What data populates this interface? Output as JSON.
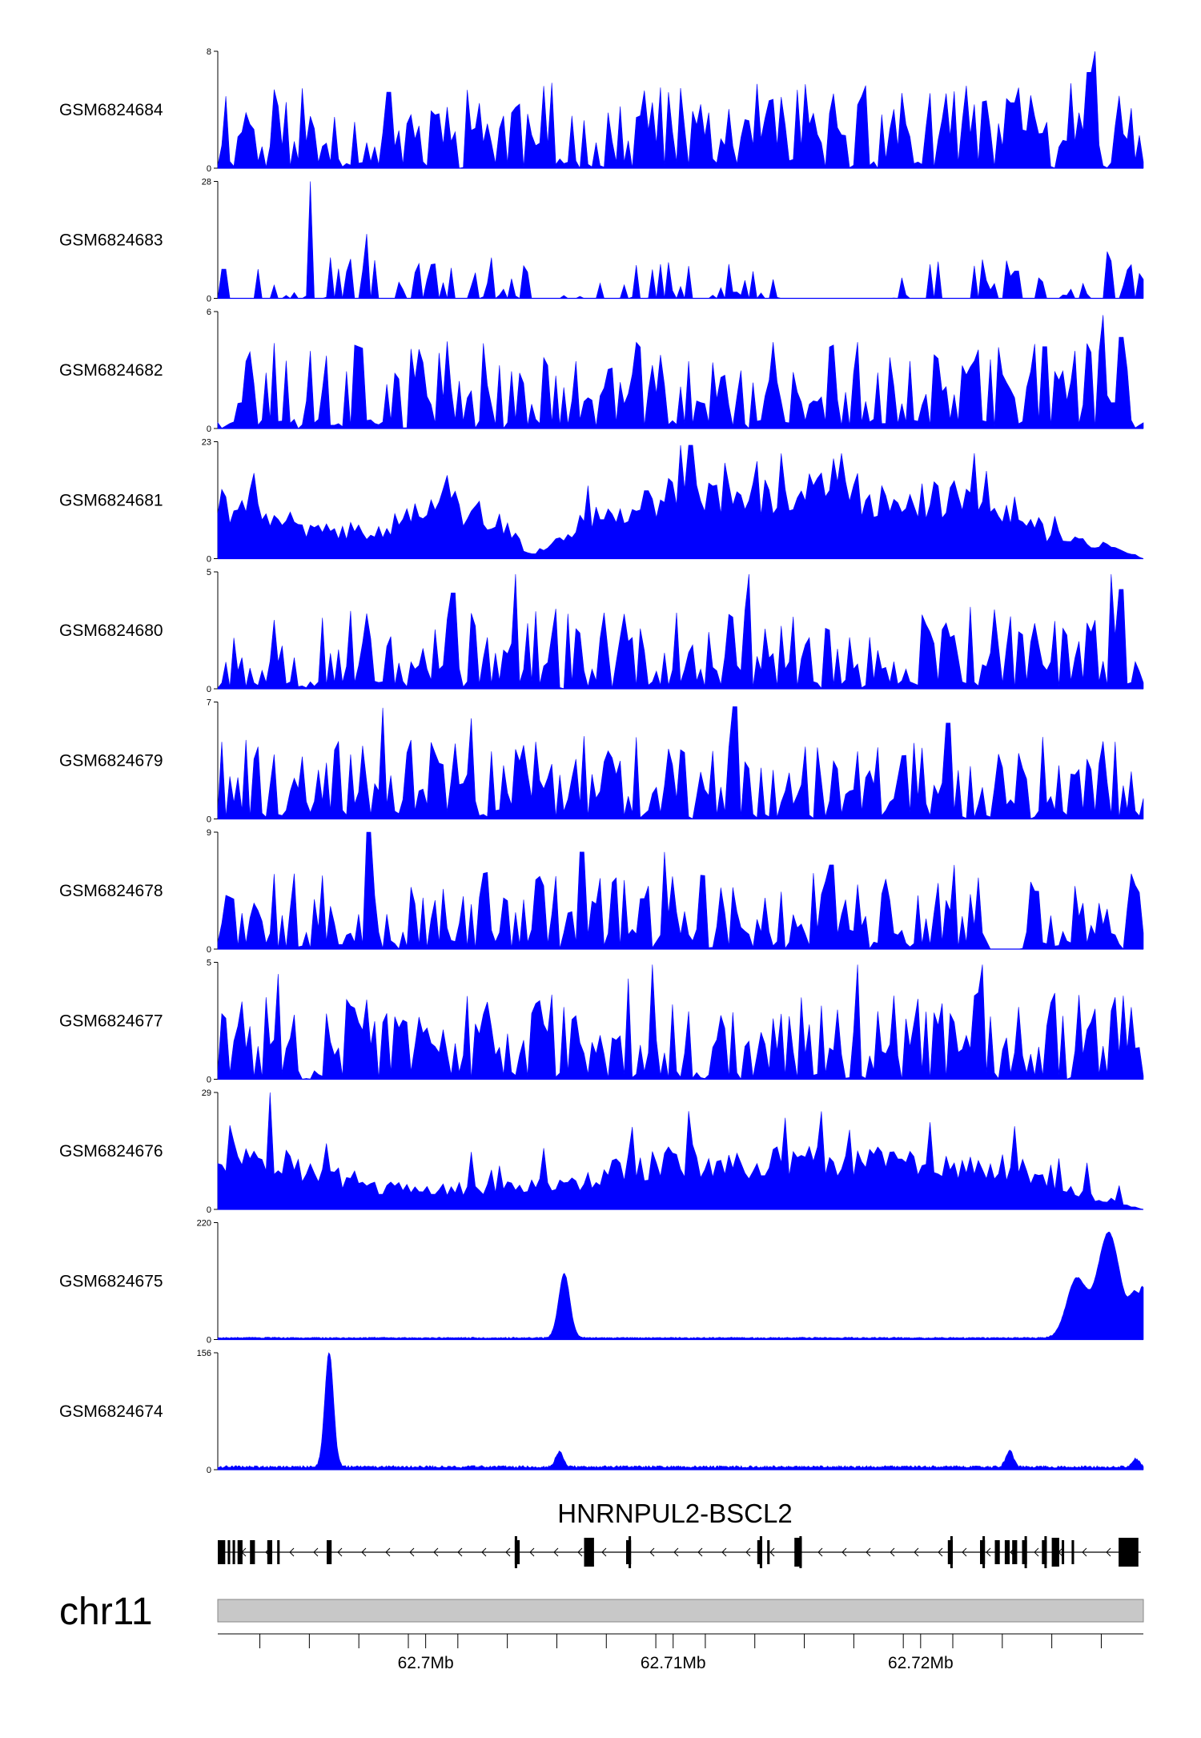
{
  "colors": {
    "signal": "#0000FF",
    "axis": "#000000",
    "ideogram_fill": "#C8C8C8",
    "ideogram_stroke": "#888888",
    "gene": "#000000"
  },
  "chart_data": {
    "type": "area",
    "region": {
      "chromosome": "chr11",
      "start_mb": 62.6916,
      "end_mb": 62.729
    },
    "series": [
      {
        "name": "GSM6824684",
        "ymax": 8,
        "ymin": 0,
        "profile": "dense_peaks",
        "seed": 11,
        "base": 0.18,
        "spread": 0.55,
        "peaks": [
          [
            62.6985,
            0.65
          ],
          [
            62.7051,
            0.73
          ],
          [
            62.715,
            0.67
          ],
          [
            62.7271,
            1.0
          ],
          [
            62.7268,
            0.82
          ],
          [
            62.7237,
            0.56
          ]
        ]
      },
      {
        "name": "GSM6824683",
        "ymax": 28,
        "ymin": 0,
        "profile": "sparse_peaks",
        "seed": 23,
        "base": 0.0,
        "spread": 0.35,
        "peaks": [
          [
            62.6953,
            1.0
          ],
          [
            62.6976,
            0.55
          ],
          [
            62.716,
            0.55
          ],
          [
            62.717,
            0.58
          ],
          [
            62.7275,
            0.4
          ]
        ],
        "gaps": [
          [
            62.7145,
            62.7186
          ]
        ]
      },
      {
        "name": "GSM6824682",
        "ymax": 6,
        "ymin": 0,
        "profile": "dense_peaks",
        "seed": 37,
        "base": 0.2,
        "spread": 0.55,
        "peaks": [
          [
            62.6994,
            0.68
          ],
          [
            62.725,
            0.7
          ],
          [
            62.7274,
            0.97
          ],
          [
            62.7281,
            0.78
          ]
        ]
      },
      {
        "name": "GSM6824681",
        "ymax": 23,
        "ymin": 0,
        "profile": "broad",
        "seed": 41,
        "base": 0.35,
        "spread": 0.35,
        "envelope": [
          [
            62.6916,
            0.55
          ],
          [
            62.6935,
            0.5
          ],
          [
            62.6955,
            0.25
          ],
          [
            62.698,
            0.3
          ],
          [
            62.701,
            0.55
          ],
          [
            62.703,
            0.35
          ],
          [
            62.7042,
            0.05
          ],
          [
            62.7048,
            0.1
          ],
          [
            62.7058,
            0.3
          ],
          [
            62.708,
            0.45
          ],
          [
            62.71,
            0.6
          ],
          [
            62.712,
            0.55
          ],
          [
            62.714,
            0.6
          ],
          [
            62.716,
            0.7
          ],
          [
            62.719,
            0.6
          ],
          [
            62.722,
            0.62
          ],
          [
            62.724,
            0.5
          ],
          [
            62.725,
            0.25
          ],
          [
            62.727,
            0.15
          ],
          [
            62.7285,
            0.05
          ],
          [
            62.729,
            0.0
          ]
        ],
        "peaks": [
          [
            62.7103,
            0.97
          ],
          [
            62.7107,
            0.97
          ],
          [
            62.7144,
            0.9
          ],
          [
            62.7168,
            0.9
          ],
          [
            62.7226,
            0.75
          ]
        ]
      },
      {
        "name": "GSM6824680",
        "ymax": 5,
        "ymin": 0,
        "profile": "dense_peaks",
        "seed": 53,
        "base": 0.15,
        "spread": 0.55,
        "peaks": [
          [
            62.7036,
            0.98
          ],
          [
            62.713,
            0.98
          ],
          [
            62.7277,
            0.98
          ],
          [
            62.7281,
            0.85
          ],
          [
            62.7011,
            0.82
          ]
        ]
      },
      {
        "name": "GSM6824679",
        "ymax": 7,
        "ymin": 0,
        "profile": "dense_peaks",
        "seed": 61,
        "base": 0.12,
        "spread": 0.6,
        "peaks": [
          [
            62.6983,
            0.95
          ],
          [
            62.7018,
            0.86
          ],
          [
            62.7125,
            0.96
          ],
          [
            62.7211,
            0.82
          ]
        ]
      },
      {
        "name": "GSM6824678",
        "ymax": 9,
        "ymin": 0,
        "profile": "dense_peaks",
        "seed": 71,
        "base": 0.12,
        "spread": 0.55,
        "peaks": [
          [
            62.6977,
            1.0
          ],
          [
            62.7063,
            0.83
          ],
          [
            62.7097,
            0.83
          ],
          [
            62.7164,
            0.72
          ],
          [
            62.7214,
            0.72
          ]
        ],
        "gaps": [
          [
            62.7227,
            62.7241
          ]
        ]
      },
      {
        "name": "GSM6824677",
        "ymax": 5,
        "ymin": 0,
        "profile": "dense_peaks",
        "seed": 83,
        "base": 0.2,
        "spread": 0.55,
        "peaks": [
          [
            62.694,
            0.9
          ],
          [
            62.7091,
            0.98
          ],
          [
            62.7175,
            0.98
          ],
          [
            62.7225,
            0.98
          ],
          [
            62.7082,
            0.86
          ]
        ]
      },
      {
        "name": "GSM6824676",
        "ymax": 29,
        "ymin": 0,
        "profile": "broad",
        "seed": 97,
        "base": 0.3,
        "spread": 0.35,
        "envelope": [
          [
            62.6916,
            0.45
          ],
          [
            62.6925,
            0.6
          ],
          [
            62.694,
            0.5
          ],
          [
            62.696,
            0.3
          ],
          [
            62.698,
            0.2
          ],
          [
            62.701,
            0.2
          ],
          [
            62.704,
            0.22
          ],
          [
            62.706,
            0.25
          ],
          [
            62.708,
            0.4
          ],
          [
            62.71,
            0.5
          ],
          [
            62.713,
            0.45
          ],
          [
            62.716,
            0.5
          ],
          [
            62.72,
            0.45
          ],
          [
            62.724,
            0.4
          ],
          [
            62.7255,
            0.2
          ],
          [
            62.7275,
            0.1
          ],
          [
            62.7285,
            0.03
          ],
          [
            62.729,
            0.0
          ]
        ],
        "peaks": [
          [
            62.6937,
            1.0
          ],
          [
            62.6921,
            0.72
          ],
          [
            62.7171,
            0.68
          ],
          [
            62.7204,
            0.52
          ]
        ]
      },
      {
        "name": "GSM6824675",
        "ymax": 220,
        "ymin": 0,
        "profile": "sharp",
        "seed": 103,
        "base": 0.01,
        "spread": 0.01,
        "peaks": [
          [
            62.7056,
            0.55,
            0.00045
          ],
          [
            62.7276,
            0.9,
            0.0009
          ],
          [
            62.7263,
            0.5,
            0.0008
          ],
          [
            62.7287,
            0.35,
            0.0005
          ],
          [
            62.729,
            0.25,
            0.0002
          ]
        ]
      },
      {
        "name": "GSM6824674",
        "ymax": 156,
        "ymin": 0,
        "profile": "sharp",
        "seed": 109,
        "base": 0.015,
        "spread": 0.02,
        "peaks": [
          [
            62.6961,
            0.98,
            0.00035
          ],
          [
            62.7054,
            0.13,
            0.0003
          ],
          [
            62.7236,
            0.14,
            0.0003
          ],
          [
            62.7287,
            0.07,
            0.0003
          ]
        ]
      }
    ],
    "gene": {
      "name": "HNRNPUL2-BSCL2",
      "strand": "-",
      "start_mb": 62.6916,
      "end_mb": 62.7289,
      "exons_mb": [
        [
          62.6916,
          62.6919
        ],
        [
          62.692,
          62.6921
        ],
        [
          62.6922,
          62.6923
        ],
        [
          62.6924,
          62.6926
        ],
        [
          62.6929,
          62.6931
        ],
        [
          62.6936,
          62.6938
        ],
        [
          62.694,
          62.6941
        ],
        [
          62.696,
          62.6962
        ],
        [
          62.7036,
          62.7038
        ],
        [
          62.7064,
          62.7068
        ],
        [
          62.7081,
          62.7083
        ],
        [
          62.7134,
          62.7136
        ],
        [
          62.7138,
          62.7139
        ],
        [
          62.7149,
          62.7152
        ],
        [
          62.7211,
          62.7213
        ],
        [
          62.7224,
          62.7226
        ],
        [
          62.723,
          62.7232
        ],
        [
          62.7234,
          62.7236
        ],
        [
          62.7237,
          62.7239
        ],
        [
          62.7241,
          62.7243
        ],
        [
          62.7249,
          62.7251
        ],
        [
          62.7253,
          62.7256
        ],
        [
          62.7257,
          62.7258
        ],
        [
          62.7261,
          62.7262
        ],
        [
          62.728,
          62.7285
        ],
        [
          62.7285,
          62.7288
        ]
      ]
    },
    "axis": {
      "chromosome_label": "chr11",
      "ticks_mb": [
        62.6933,
        62.6953,
        62.6973,
        62.6993,
        62.7013,
        62.7033,
        62.7053,
        62.7073,
        62.7093,
        62.7113,
        62.7133,
        62.7153,
        62.7173,
        62.7193,
        62.7213,
        62.7233,
        62.7253,
        62.7273
      ],
      "labeled_ticks": [
        {
          "mb": 62.7,
          "label": "62.7Mb"
        },
        {
          "mb": 62.71,
          "label": "62.71Mb"
        },
        {
          "mb": 62.72,
          "label": "62.72Mb"
        }
      ]
    }
  }
}
